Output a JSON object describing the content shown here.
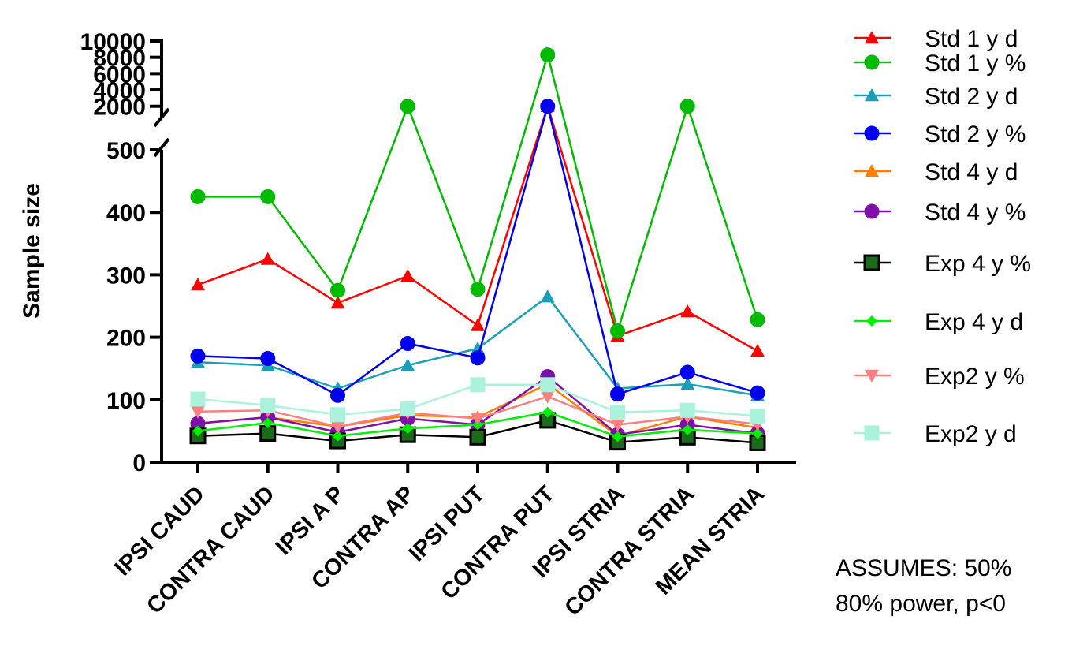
{
  "chart_data": {
    "type": "line",
    "title": "",
    "xlabel": "",
    "ylabel": "Sample size",
    "categories": [
      "IPSI CAUD",
      "CONTRA CAUD",
      "IPSI A P",
      "CONTRA AP",
      "IPSI PUT",
      "CONTRA PUT",
      "IPSI STRIA",
      "CONTRA STRIA",
      "MEAN STRIA"
    ],
    "y_axis": {
      "segments": [
        {
          "range": [
            0,
            500
          ],
          "ticks": [
            0,
            100,
            200,
            300,
            400,
            500
          ]
        },
        {
          "range": [
            1200,
            10000
          ],
          "ticks": [
            2000,
            4000,
            6000,
            8000,
            10000
          ]
        }
      ],
      "tick_labels": [
        "0",
        "100",
        "200",
        "300",
        "400",
        "500",
        "2000",
        "4000",
        "6000",
        "8000",
        "10000"
      ],
      "break": [
        500,
        1200
      ]
    },
    "grid": false,
    "legend_position": "right",
    "series": [
      {
        "name": "Std 1 y d",
        "color": "#ff0000",
        "marker": "triangle-up",
        "values": [
          284,
          325,
          255,
          298,
          219,
          2000,
          202,
          241,
          178
        ]
      },
      {
        "name": "Std 1 y %",
        "color": "#00bb00",
        "marker": "circle",
        "values": [
          425,
          425,
          275,
          2000,
          277,
          8300,
          210,
          2000,
          228
        ]
      },
      {
        "name": "Std 2 y d",
        "color": "#1a9fb8",
        "marker": "triangle-up",
        "values": [
          160,
          155,
          118,
          155,
          182,
          265,
          118,
          125,
          107
        ]
      },
      {
        "name": "Std 2 y %",
        "color": "#0000ee",
        "marker": "circle",
        "values": [
          170,
          166,
          107,
          190,
          167,
          2000,
          109,
          144,
          111
        ]
      },
      {
        "name": "Std 4 y d",
        "color": "#ff7f00",
        "marker": "triangle-up",
        "values": [
          62,
          72,
          57,
          75,
          72,
          125,
          42,
          73,
          55
        ]
      },
      {
        "name": "Std 4 y %",
        "color": "#7f0fa8",
        "marker": "circle",
        "values": [
          62,
          72,
          48,
          70,
          60,
          137,
          44,
          60,
          46
        ]
      },
      {
        "name": "Exp 4 y %",
        "color": "#000000",
        "marker": "square",
        "values": [
          42,
          46,
          34,
          44,
          40,
          67,
          32,
          40,
          31
        ]
      },
      {
        "name": "Exp 4 y d",
        "color": "#00ee00",
        "marker": "diamond",
        "values": [
          50,
          63,
          42,
          54,
          60,
          80,
          41,
          52,
          46
        ]
      },
      {
        "name": "Exp2 y %",
        "color": "#f88080",
        "marker": "triangle-down",
        "values": [
          81,
          83,
          57,
          79,
          70,
          105,
          60,
          73,
          61
        ]
      },
      {
        "name": "Exp2 y d",
        "color": "#aaf2dc",
        "marker": "square",
        "values": [
          101,
          91,
          76,
          85,
          124,
          124,
          80,
          83,
          74
        ]
      }
    ],
    "annotation": [
      "ASSUMES: 50%",
      "80% power, p<0"
    ]
  },
  "colors": {
    "exp4_marker_fill": "#1a6b1a"
  }
}
